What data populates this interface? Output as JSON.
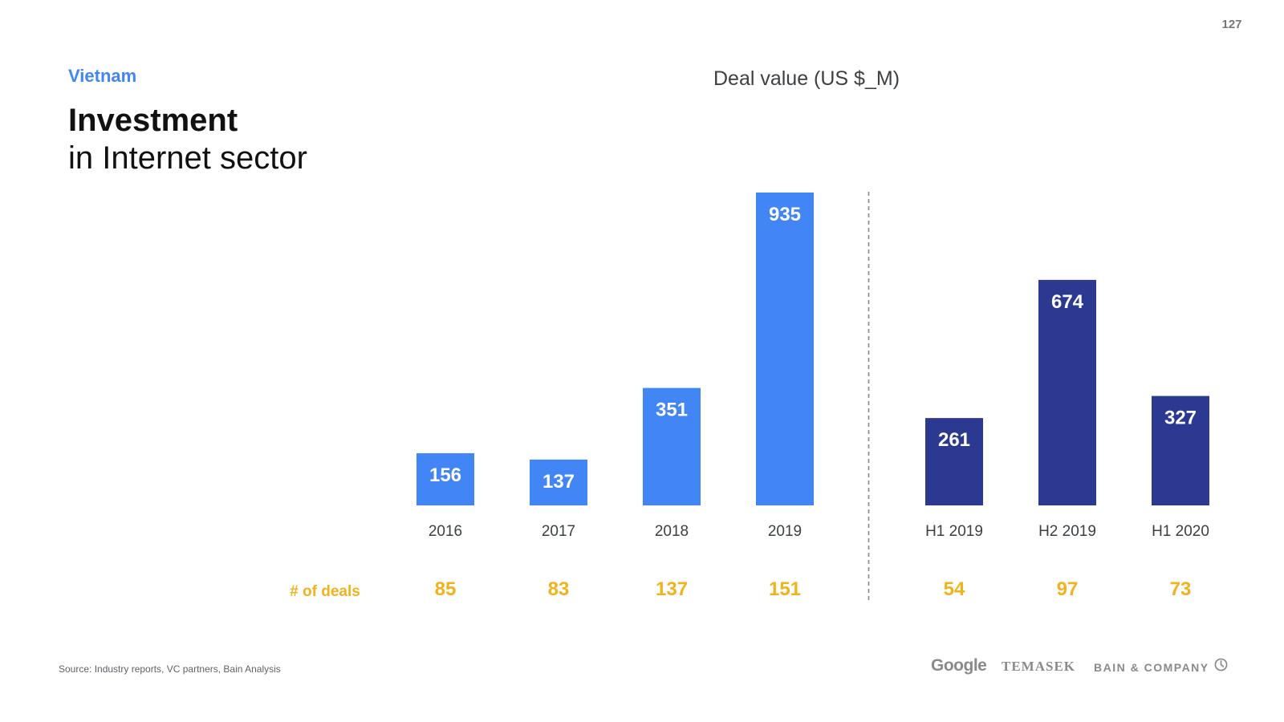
{
  "page_number": "127",
  "region": "Vietnam",
  "title_strong": "Investment",
  "title_light": "in Internet sector",
  "source": "Source: Industry reports, VC partners, Bain Analysis",
  "logos": {
    "google": "Google",
    "temasek": "TEMASEK",
    "bain": "BAIN & COMPANY"
  },
  "colors": {
    "annual_bar": "#4285f4",
    "half_year_bar": "#2b3990",
    "deals": "#f2b21b",
    "region": "#4285f4"
  },
  "chart_data": {
    "type": "bar",
    "title": "Deal value (US $_M)",
    "categories": [
      "2016",
      "2017",
      "2018",
      "2019",
      "H1 2019",
      "H2 2019",
      "H1 2020"
    ],
    "values": [
      156,
      137,
      351,
      935,
      261,
      674,
      327
    ],
    "groups": [
      "annual",
      "annual",
      "annual",
      "annual",
      "half-year",
      "half-year",
      "half-year"
    ],
    "deals_label": "# of deals",
    "deals": [
      85,
      83,
      137,
      151,
      54,
      97,
      73
    ],
    "ylim": [
      0,
      935
    ],
    "grid": false,
    "divider_between": [
      "2019",
      "H1 2019"
    ]
  }
}
